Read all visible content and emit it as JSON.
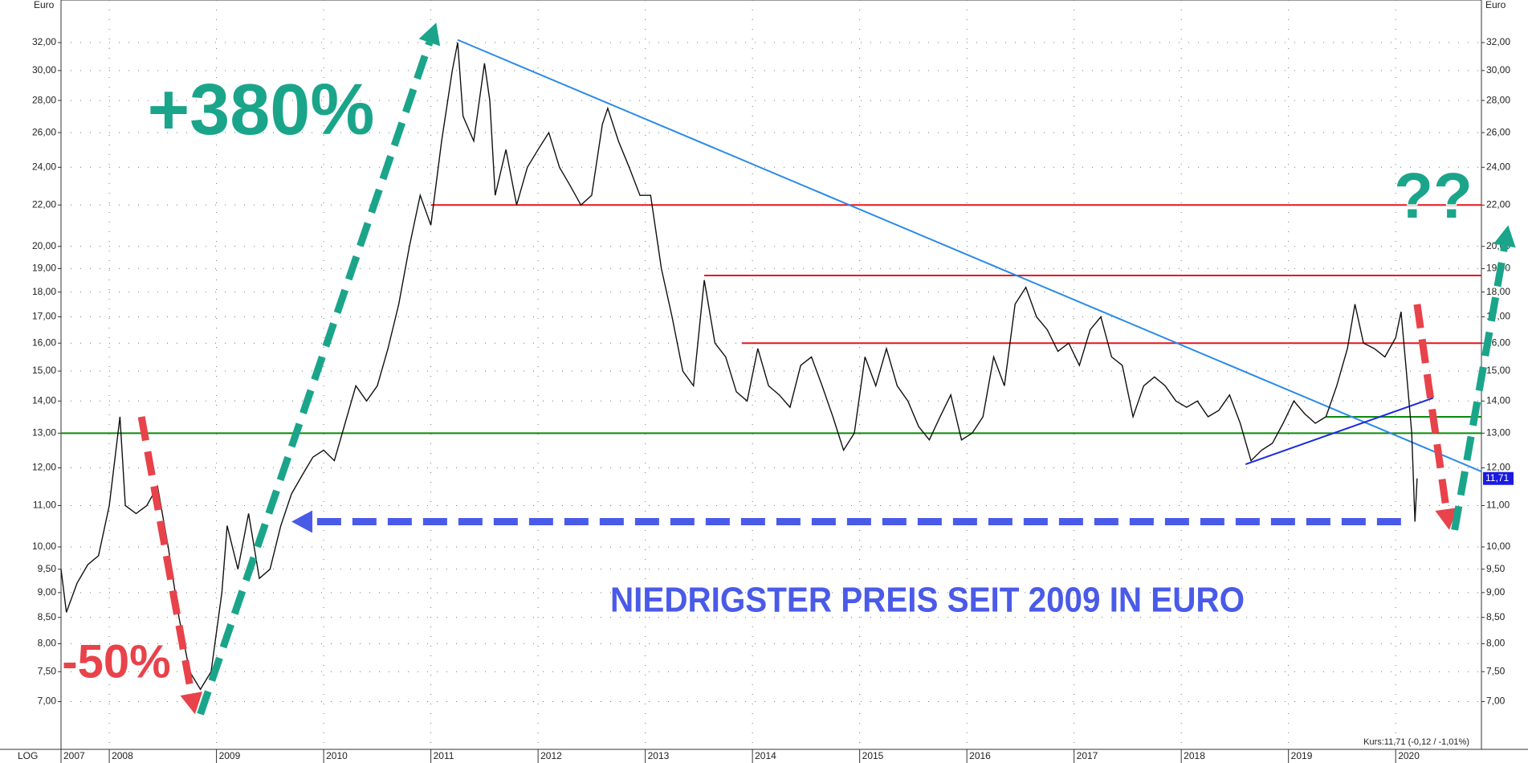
{
  "chart_data": {
    "type": "line",
    "y_axis_label": "Euro",
    "scale_label": "LOG",
    "log_scale": true,
    "grid": true,
    "xlim": [
      2007.55,
      2020.8
    ],
    "ylim": [
      6.27,
      35.3
    ],
    "xticks": [
      {
        "value": 2007.55,
        "label": "2007"
      },
      2008,
      2009,
      2010,
      2011,
      2012,
      2013,
      2014,
      2015,
      2016,
      2017,
      2018,
      2019,
      2020
    ],
    "yticks": [
      {
        "value": 7,
        "label": "7,00"
      },
      {
        "value": 7.5,
        "label": "7,50"
      },
      {
        "value": 8,
        "label": "8,00"
      },
      {
        "value": 8.5,
        "label": "8,50"
      },
      {
        "value": 9,
        "label": "9,00"
      },
      {
        "value": 9.5,
        "label": "9,50"
      },
      {
        "value": 10,
        "label": "10,00"
      },
      {
        "value": 11,
        "label": "11,00"
      },
      {
        "value": 12,
        "label": "12,00"
      },
      {
        "value": 13,
        "label": "13,00"
      },
      {
        "value": 14,
        "label": "14,00"
      },
      {
        "value": 15,
        "label": "15,00"
      },
      {
        "value": 16,
        "label": "16,00"
      },
      {
        "value": 17,
        "label": "17,00"
      },
      {
        "value": 18,
        "label": "18,00"
      },
      {
        "value": 19,
        "label": "19,00"
      },
      {
        "value": 20,
        "label": "20,00"
      },
      {
        "value": 22,
        "label": "22,00"
      },
      {
        "value": 24,
        "label": "24,00"
      },
      {
        "value": 26,
        "label": "26,00"
      },
      {
        "value": 28,
        "label": "28,00"
      },
      {
        "value": 30,
        "label": "30,00"
      },
      {
        "value": 32,
        "label": "32,00"
      }
    ],
    "series": [
      {
        "color": "#111111",
        "x": [
          2007.55,
          2007.6,
          2007.7,
          2007.8,
          2007.9,
          2008.0,
          2008.1,
          2008.15,
          2008.25,
          2008.35,
          2008.45,
          2008.55,
          2008.65,
          2008.75,
          2008.85,
          2008.95,
          2009.05,
          2009.1,
          2009.2,
          2009.3,
          2009.4,
          2009.5,
          2009.6,
          2009.7,
          2009.8,
          2009.9,
          2010.0,
          2010.1,
          2010.2,
          2010.3,
          2010.4,
          2010.5,
          2010.6,
          2010.7,
          2010.8,
          2010.9,
          2011.0,
          2011.1,
          2011.2,
          2011.25,
          2011.3,
          2011.4,
          2011.5,
          2011.55,
          2011.6,
          2011.7,
          2011.8,
          2011.9,
          2012.0,
          2012.1,
          2012.2,
          2012.3,
          2012.4,
          2012.5,
          2012.6,
          2012.65,
          2012.75,
          2012.85,
          2012.95,
          2013.05,
          2013.15,
          2013.25,
          2013.35,
          2013.45,
          2013.55,
          2013.65,
          2013.75,
          2013.85,
          2013.95,
          2014.05,
          2014.15,
          2014.25,
          2014.35,
          2014.45,
          2014.55,
          2014.65,
          2014.75,
          2014.85,
          2014.95,
          2015.05,
          2015.15,
          2015.25,
          2015.35,
          2015.45,
          2015.55,
          2015.65,
          2015.75,
          2015.85,
          2015.95,
          2016.05,
          2016.15,
          2016.25,
          2016.35,
          2016.45,
          2016.55,
          2016.65,
          2016.75,
          2016.85,
          2016.95,
          2017.05,
          2017.15,
          2017.25,
          2017.35,
          2017.45,
          2017.55,
          2017.65,
          2017.75,
          2017.85,
          2017.95,
          2018.05,
          2018.15,
          2018.25,
          2018.35,
          2018.45,
          2018.55,
          2018.65,
          2018.75,
          2018.85,
          2018.95,
          2019.05,
          2019.15,
          2019.25,
          2019.35,
          2019.45,
          2019.55,
          2019.62,
          2019.7,
          2019.8,
          2019.9,
          2020.0,
          2020.05,
          2020.1,
          2020.15,
          2020.18,
          2020.2
        ],
        "values": [
          9.5,
          8.6,
          9.2,
          9.6,
          9.8,
          11.0,
          13.5,
          11.0,
          10.8,
          11.0,
          11.5,
          10.0,
          8.5,
          7.5,
          7.2,
          7.5,
          9.0,
          10.5,
          9.5,
          10.8,
          9.3,
          9.5,
          10.5,
          11.3,
          11.8,
          12.3,
          12.5,
          12.2,
          13.3,
          14.5,
          14.0,
          14.5,
          15.8,
          17.5,
          20.0,
          22.5,
          21.0,
          25.5,
          30.0,
          32.0,
          27.0,
          25.5,
          30.5,
          28.0,
          22.5,
          25.0,
          22.0,
          24.0,
          25.0,
          26.0,
          24.0,
          23.0,
          22.0,
          22.5,
          26.5,
          27.5,
          25.5,
          24.0,
          22.5,
          22.5,
          19.0,
          17.0,
          15.0,
          14.5,
          18.5,
          16.0,
          15.5,
          14.3,
          14.0,
          15.8,
          14.5,
          14.2,
          13.8,
          15.2,
          15.5,
          14.5,
          13.5,
          12.5,
          13.0,
          15.5,
          14.5,
          15.8,
          14.5,
          14.0,
          13.2,
          12.8,
          13.5,
          14.2,
          12.8,
          13.0,
          13.5,
          15.5,
          14.5,
          17.5,
          18.2,
          17.0,
          16.5,
          15.7,
          16.0,
          15.2,
          16.5,
          17.0,
          15.5,
          15.2,
          13.5,
          14.5,
          14.8,
          14.5,
          14.0,
          13.8,
          14.0,
          13.5,
          13.7,
          14.2,
          13.3,
          12.2,
          12.5,
          12.7,
          13.3,
          14.0,
          13.6,
          13.3,
          13.5,
          14.5,
          15.8,
          17.5,
          16.0,
          15.8,
          15.5,
          16.2,
          17.2,
          15.0,
          13.0,
          10.6,
          11.71
        ]
      }
    ],
    "reference_lines": [
      {
        "value": 22,
        "from": 2011.0,
        "color": "#e8141e"
      },
      {
        "value": 18.7,
        "from": 2013.55,
        "color": "#e8141e"
      },
      {
        "value": 16,
        "from": 2013.9,
        "color": "#e8141e"
      },
      {
        "value": 13,
        "from": 2007.55,
        "color": "#0a8a0a"
      },
      {
        "value": 13.5,
        "from": 2019.35,
        "color": "#0a8a0a"
      }
    ],
    "trend_lines": [
      {
        "from": [
          2011.25,
          32.2
        ],
        "to": [
          2020.8,
          11.9
        ],
        "color": "#2a8ae8"
      },
      {
        "from": [
          2018.6,
          12.1
        ],
        "to": [
          2020.35,
          14.1
        ],
        "color": "#1a2ae0"
      }
    ],
    "arrows": [
      {
        "from": [
          2008.3,
          13.5
        ],
        "to": [
          2008.8,
          6.8
        ],
        "color": "#e8424a"
      },
      {
        "from": [
          2008.85,
          6.8
        ],
        "to": [
          2011.05,
          33.5
        ],
        "color": "#1aa58a"
      },
      {
        "from": [
          2020.05,
          10.6
        ],
        "to": [
          2009.7,
          10.6
        ],
        "color": "#4a5ae8"
      },
      {
        "from": [
          2020.2,
          17.5
        ],
        "to": [
          2020.5,
          10.4
        ],
        "color": "#e8424a"
      },
      {
        "from": [
          2020.55,
          10.4
        ],
        "to": [
          2021.05,
          21.0
        ],
        "color": "#1aa58a"
      }
    ],
    "last_price": {
      "value": 11.71,
      "label": "11,71"
    },
    "quote": "Kurs:11,71 (-0,12 / -1,01%)",
    "annotations": [
      "+380%",
      "-50%",
      "??",
      "NIEDRIGSTER PREIS SEIT 2009 IN EURO"
    ]
  }
}
